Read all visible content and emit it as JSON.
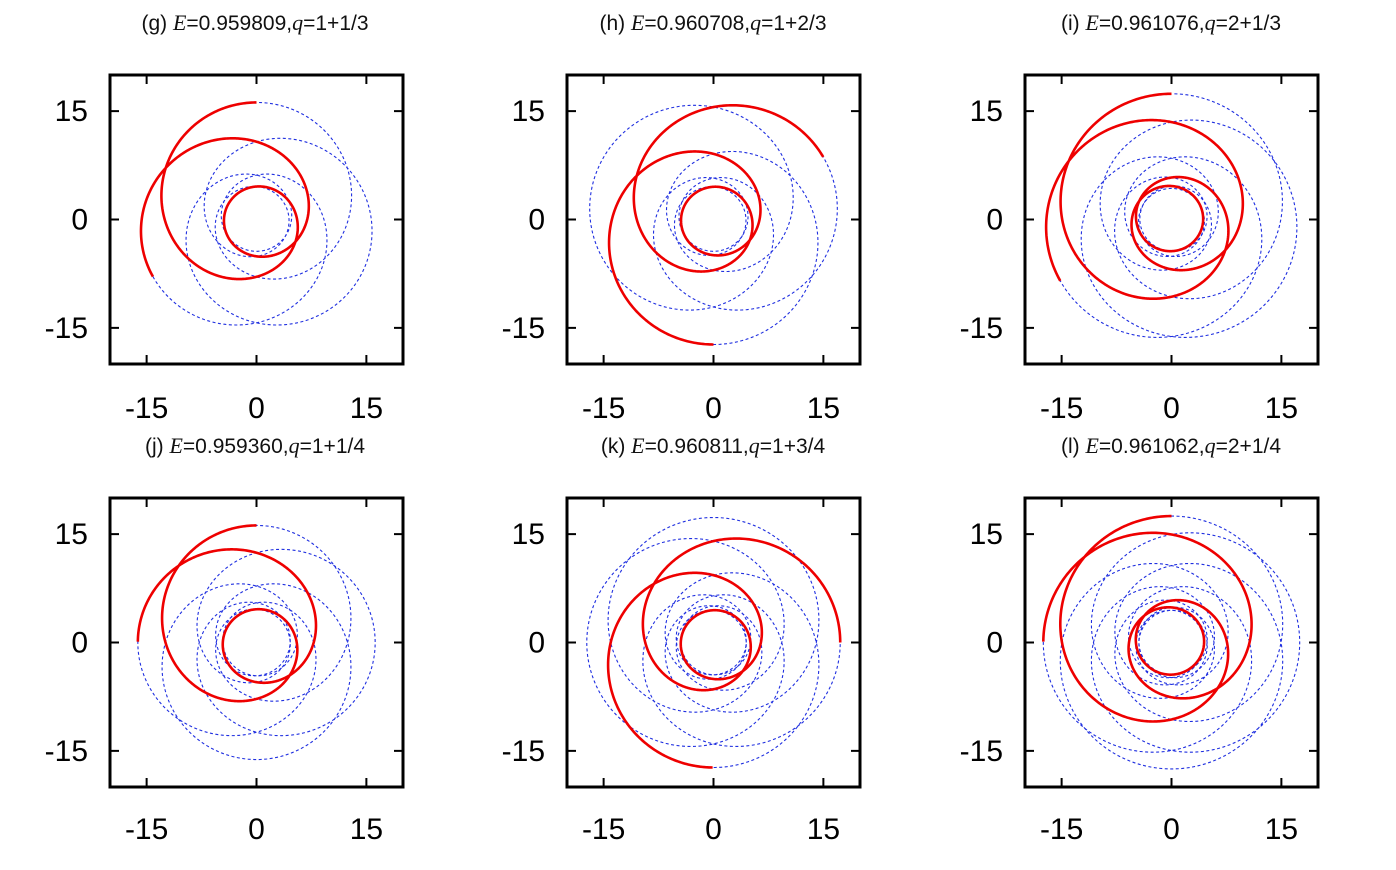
{
  "figure": {
    "panel_order": [
      "g",
      "h",
      "i",
      "j",
      "k",
      "l"
    ],
    "colors": {
      "red_orbit": "#ee0000",
      "blue_orbit": "#1f2fe0",
      "frame": "#000000"
    }
  },
  "chart_data": [
    {
      "type": "line",
      "panel": "(g)",
      "title": {
        "label": "(g)",
        "E_symbol": "E",
        "E_value": "=0.959809,",
        "q_symbol": "q",
        "q_value": "=1+1/3"
      },
      "xlim": [
        -20,
        20
      ],
      "ylim": [
        -20,
        20
      ],
      "xticks": [
        -15,
        0,
        15
      ],
      "yticks": [
        -15,
        0,
        15
      ],
      "tick_labels_x": [
        "-15",
        "0",
        "15"
      ],
      "tick_labels_y": [
        "15",
        "0",
        "-15"
      ],
      "orbit": {
        "E": 0.959809,
        "q": 1.3333333,
        "r_periapsis": 4.4,
        "r_apoapsis": 16.2,
        "apsis_angle_deg": 90,
        "n_petals": 3
      },
      "series": [
        {
          "style": "solid-red",
          "description": "one full radial period",
          "r_range": [
            4.4,
            16.2
          ]
        },
        {
          "style": "dashed-blue",
          "description": "complete periodic orbit"
        }
      ]
    },
    {
      "type": "line",
      "panel": "(h)",
      "title": {
        "label": "(h)",
        "E_symbol": "E",
        "E_value": "=0.960708,",
        "q_symbol": "q",
        "q_value": "=1+2/3"
      },
      "xlim": [
        -20,
        20
      ],
      "ylim": [
        -20,
        20
      ],
      "xticks": [
        -15,
        0,
        15
      ],
      "yticks": [
        -15,
        0,
        15
      ],
      "tick_labels_x": [
        "-15",
        "0",
        "15"
      ],
      "tick_labels_y": [
        "15",
        "0",
        "-15"
      ],
      "orbit": {
        "E": 0.960708,
        "q": 1.6666667,
        "r_periapsis": 4.4,
        "r_apoapsis": 17.3,
        "apsis_angle_deg": 30,
        "n_petals": 3
      },
      "series": [
        {
          "style": "solid-red",
          "description": "one full radial period",
          "r_range": [
            4.4,
            17.3
          ]
        },
        {
          "style": "dashed-blue",
          "description": "complete periodic orbit"
        }
      ]
    },
    {
      "type": "line",
      "panel": "(i)",
      "title": {
        "label": "(i)",
        "E_symbol": "E",
        "E_value": "=0.961076,",
        "q_symbol": "q",
        "q_value": "=2+1/3"
      },
      "xlim": [
        -20,
        20
      ],
      "ylim": [
        -20,
        20
      ],
      "xticks": [
        -15,
        0,
        15
      ],
      "yticks": [
        -15,
        0,
        15
      ],
      "tick_labels_x": [
        "-15",
        "0",
        "15"
      ],
      "tick_labels_y": [
        "15",
        "0",
        "-15"
      ],
      "orbit": {
        "E": 0.961076,
        "q": 2.3333333,
        "r_periapsis": 4.3,
        "r_apoapsis": 17.4,
        "apsis_angle_deg": 90,
        "n_petals": 3
      },
      "series": [
        {
          "style": "solid-red",
          "description": "one full radial period",
          "r_range": [
            4.3,
            17.4
          ]
        },
        {
          "style": "dashed-blue",
          "description": "complete periodic orbit"
        }
      ]
    },
    {
      "type": "line",
      "panel": "(j)",
      "title": {
        "label": "(j)",
        "E_symbol": "E",
        "E_value": "=0.959360,",
        "q_symbol": "q",
        "q_value": "=1+1/4"
      },
      "xlim": [
        -20,
        20
      ],
      "ylim": [
        -20,
        20
      ],
      "xticks": [
        -15,
        0,
        15
      ],
      "yticks": [
        -15,
        0,
        15
      ],
      "tick_labels_x": [
        "-15",
        "0",
        "15"
      ],
      "tick_labels_y": [
        "15",
        "0",
        "-15"
      ],
      "orbit": {
        "E": 0.95936,
        "q": 1.25,
        "r_periapsis": 4.5,
        "r_apoapsis": 16.2,
        "apsis_angle_deg": 90,
        "n_petals": 4
      },
      "series": [
        {
          "style": "solid-red",
          "description": "one full radial period",
          "r_range": [
            4.5,
            16.2
          ]
        },
        {
          "style": "dashed-blue",
          "description": "complete periodic orbit"
        }
      ]
    },
    {
      "type": "line",
      "panel": "(k)",
      "title": {
        "label": "(k)",
        "E_symbol": "E",
        "E_value": "=0.960811,",
        "q_symbol": "q",
        "q_value": "=1+3/4"
      },
      "xlim": [
        -20,
        20
      ],
      "ylim": [
        -20,
        20
      ],
      "xticks": [
        -15,
        0,
        15
      ],
      "yticks": [
        -15,
        0,
        15
      ],
      "tick_labels_x": [
        "-15",
        "0",
        "15"
      ],
      "tick_labels_y": [
        "15",
        "0",
        "-15"
      ],
      "orbit": {
        "E": 0.960811,
        "q": 1.75,
        "r_periapsis": 4.4,
        "r_apoapsis": 17.3,
        "apsis_angle_deg": 0,
        "n_petals": 4
      },
      "series": [
        {
          "style": "solid-red",
          "description": "one full radial period",
          "r_range": [
            4.4,
            17.3
          ]
        },
        {
          "style": "dashed-blue",
          "description": "complete periodic orbit"
        }
      ]
    },
    {
      "type": "line",
      "panel": "(l)",
      "title": {
        "label": "(l)",
        "E_symbol": "E",
        "E_value": "=0.961062,",
        "q_symbol": "q",
        "q_value": "=2+1/4"
      },
      "xlim": [
        -20,
        20
      ],
      "ylim": [
        -20,
        20
      ],
      "xticks": [
        -15,
        0,
        15
      ],
      "yticks": [
        -15,
        0,
        15
      ],
      "tick_labels_x": [
        "-15",
        "0",
        "15"
      ],
      "tick_labels_y": [
        "15",
        "0",
        "-15"
      ],
      "orbit": {
        "E": 0.961062,
        "q": 2.25,
        "r_periapsis": 4.4,
        "r_apoapsis": 17.5,
        "apsis_angle_deg": 90,
        "n_petals": 4
      },
      "series": [
        {
          "style": "solid-red",
          "description": "one full radial period",
          "r_range": [
            4.4,
            17.5
          ]
        },
        {
          "style": "dashed-blue",
          "description": "complete periodic orbit"
        }
      ]
    }
  ]
}
